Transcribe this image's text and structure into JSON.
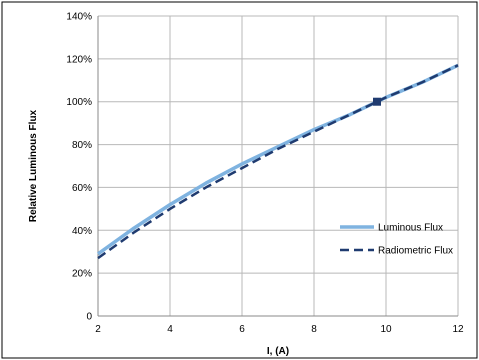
{
  "chart_data": {
    "type": "line",
    "title": "",
    "xlabel": "I, (A)",
    "ylabel": "Relative Luminous Flux",
    "xlim": [
      2,
      12
    ],
    "ylim": [
      0,
      140
    ],
    "x_ticks": [
      2,
      4,
      6,
      8,
      10,
      12
    ],
    "y_ticks": [
      0,
      20,
      40,
      60,
      80,
      100,
      120,
      140
    ],
    "x_tick_labels": [
      "2",
      "4",
      "6",
      "8",
      "10",
      "12"
    ],
    "y_tick_labels": [
      "0",
      "20%",
      "40%",
      "60%",
      "80%",
      "100%",
      "120%",
      "140%"
    ],
    "grid": true,
    "legend_position": "right",
    "series": [
      {
        "name": "Luminous Flux",
        "color": "#7fb3e0",
        "style": "solid",
        "x": [
          2,
          3,
          4,
          5,
          6,
          7,
          8,
          9,
          9.75,
          10,
          11,
          12
        ],
        "y": [
          29,
          41,
          52,
          62,
          71,
          79,
          87,
          94,
          100,
          102,
          109,
          117
        ]
      },
      {
        "name": "Radiometric Flux",
        "color": "#1f3b70",
        "style": "dashed",
        "x": [
          2,
          3,
          4,
          5,
          6,
          7,
          8,
          9,
          9.75,
          10,
          11,
          12
        ],
        "y": [
          27,
          39,
          50,
          60,
          69,
          78,
          86,
          94,
          100,
          102,
          109,
          117
        ]
      }
    ],
    "annotations": [
      {
        "type": "marker",
        "x": 9.75,
        "y": 100,
        "color": "#1f3b70"
      }
    ]
  }
}
